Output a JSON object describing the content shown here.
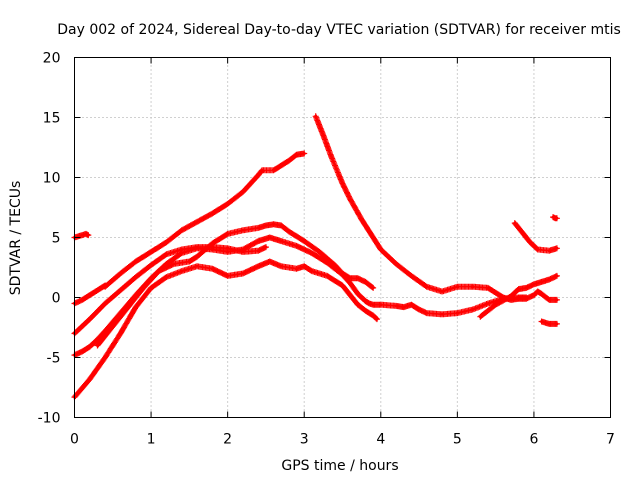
{
  "chart_data": {
    "type": "scatter",
    "title": "Day 002 of 2024, Sidereal Day-to-day VTEC variation (SDTVAR) for receiver mtis",
    "xlabel": "GPS time / hours",
    "ylabel": "SDTVAR / TECUs",
    "xlim": [
      0,
      7
    ],
    "ylim": [
      -10,
      20
    ],
    "xticks": [
      0,
      1,
      2,
      3,
      4,
      5,
      6,
      7
    ],
    "yticks": [
      -10,
      -5,
      0,
      5,
      10,
      15,
      20
    ],
    "xtick_labels": [
      "0",
      "1",
      "2",
      "3",
      "4",
      "5",
      "6",
      "7"
    ],
    "ytick_labels": [
      "-10",
      "-5",
      "0",
      "5",
      "10",
      "15",
      "20"
    ],
    "grid": true,
    "marker": "+",
    "color": "#ff0000",
    "series": [
      {
        "name": "s1",
        "points": [
          [
            0.0,
            5.0
          ],
          [
            0.05,
            5.1
          ],
          [
            0.1,
            5.2
          ],
          [
            0.15,
            5.3
          ],
          [
            0.18,
            5.2
          ]
        ]
      },
      {
        "name": "s2",
        "points": [
          [
            0.0,
            -0.5
          ],
          [
            0.1,
            -0.2
          ],
          [
            0.2,
            0.2
          ],
          [
            0.3,
            0.6
          ],
          [
            0.4,
            1.0
          ]
        ]
      },
      {
        "name": "s3",
        "points": [
          [
            0.0,
            -3.0
          ],
          [
            0.2,
            -1.8
          ],
          [
            0.4,
            -0.5
          ],
          [
            0.6,
            0.6
          ],
          [
            0.8,
            1.7
          ],
          [
            1.0,
            2.7
          ],
          [
            1.2,
            3.6
          ],
          [
            1.4,
            4.0
          ],
          [
            1.6,
            4.2
          ],
          [
            1.8,
            4.2
          ],
          [
            2.0,
            4.1
          ],
          [
            2.2,
            3.8
          ],
          [
            2.4,
            3.9
          ],
          [
            2.5,
            4.2
          ]
        ]
      },
      {
        "name": "s4",
        "points": [
          [
            0.0,
            -4.8
          ],
          [
            0.1,
            -4.5
          ],
          [
            0.2,
            -4.1
          ],
          [
            0.3,
            -3.5
          ],
          [
            0.4,
            -2.8
          ],
          [
            0.6,
            -1.3
          ],
          [
            0.8,
            0.2
          ],
          [
            1.0,
            1.6
          ],
          [
            1.2,
            2.8
          ],
          [
            1.4,
            3.7
          ],
          [
            1.6,
            4.1
          ],
          [
            1.8,
            4.0
          ],
          [
            2.0,
            3.8
          ],
          [
            2.2,
            4.0
          ],
          [
            2.4,
            4.7
          ],
          [
            2.55,
            5.0
          ],
          [
            2.7,
            4.7
          ],
          [
            2.9,
            4.3
          ],
          [
            3.1,
            3.7
          ],
          [
            3.3,
            2.9
          ],
          [
            3.5,
            1.9
          ],
          [
            3.6,
            1.2
          ],
          [
            3.7,
            0.3
          ],
          [
            3.8,
            -0.3
          ],
          [
            3.85,
            -0.5
          ],
          [
            3.9,
            -0.6
          ],
          [
            4.0,
            -0.6
          ],
          [
            4.2,
            -0.7
          ],
          [
            4.3,
            -0.8
          ],
          [
            4.4,
            -0.6
          ],
          [
            4.5,
            -1.0
          ],
          [
            4.6,
            -1.3
          ],
          [
            4.8,
            -1.4
          ],
          [
            5.0,
            -1.3
          ],
          [
            5.2,
            -1.0
          ],
          [
            5.4,
            -0.5
          ],
          [
            5.6,
            -0.1
          ],
          [
            5.8,
            0.0
          ],
          [
            5.9,
            0.0
          ]
        ]
      },
      {
        "name": "s5",
        "points": [
          [
            0.0,
            -8.3
          ],
          [
            0.2,
            -6.8
          ],
          [
            0.4,
            -5.0
          ],
          [
            0.6,
            -3.0
          ],
          [
            0.8,
            -0.8
          ],
          [
            1.0,
            0.8
          ],
          [
            1.2,
            1.7
          ],
          [
            1.4,
            2.2
          ],
          [
            1.6,
            2.6
          ],
          [
            1.8,
            2.4
          ],
          [
            2.0,
            1.8
          ],
          [
            2.2,
            2.0
          ],
          [
            2.4,
            2.6
          ],
          [
            2.55,
            3.0
          ],
          [
            2.7,
            2.6
          ],
          [
            2.9,
            2.4
          ],
          [
            3.0,
            2.6
          ],
          [
            3.1,
            2.2
          ],
          [
            3.3,
            1.8
          ],
          [
            3.5,
            1.0
          ],
          [
            3.6,
            0.2
          ],
          [
            3.7,
            -0.6
          ],
          [
            3.8,
            -1.1
          ],
          [
            3.9,
            -1.5
          ],
          [
            3.95,
            -1.8
          ]
        ]
      },
      {
        "name": "s6",
        "points": [
          [
            0.3,
            -4.0
          ],
          [
            0.5,
            -2.4
          ],
          [
            0.7,
            -0.8
          ],
          [
            0.9,
            0.8
          ],
          [
            1.1,
            2.2
          ],
          [
            1.3,
            2.8
          ],
          [
            1.5,
            3.0
          ],
          [
            1.6,
            3.4
          ],
          [
            1.8,
            4.5
          ],
          [
            2.0,
            5.3
          ],
          [
            2.2,
            5.6
          ],
          [
            2.4,
            5.8
          ],
          [
            2.5,
            6.0
          ],
          [
            2.6,
            6.1
          ],
          [
            2.7,
            6.0
          ],
          [
            2.8,
            5.5
          ],
          [
            3.0,
            4.7
          ],
          [
            3.2,
            3.8
          ],
          [
            3.4,
            2.7
          ],
          [
            3.5,
            2.0
          ],
          [
            3.6,
            1.6
          ],
          [
            3.7,
            1.6
          ],
          [
            3.8,
            1.3
          ],
          [
            3.9,
            0.8
          ]
        ]
      },
      {
        "name": "s7",
        "points": [
          [
            0.4,
            0.9
          ],
          [
            0.6,
            2.0
          ],
          [
            0.8,
            3.0
          ],
          [
            1.0,
            3.8
          ],
          [
            1.2,
            4.6
          ],
          [
            1.4,
            5.6
          ],
          [
            1.6,
            6.3
          ],
          [
            1.8,
            7.0
          ],
          [
            2.0,
            7.8
          ],
          [
            2.2,
            8.8
          ],
          [
            2.4,
            10.2
          ],
          [
            2.45,
            10.6
          ],
          [
            2.6,
            10.6
          ],
          [
            2.8,
            11.4
          ],
          [
            2.9,
            11.9
          ],
          [
            3.0,
            12.0
          ]
        ]
      },
      {
        "name": "s8",
        "points": [
          [
            3.15,
            15.1
          ],
          [
            3.25,
            13.5
          ],
          [
            3.35,
            11.8
          ],
          [
            3.5,
            9.5
          ],
          [
            3.6,
            8.2
          ],
          [
            3.75,
            6.5
          ],
          [
            3.9,
            5.0
          ],
          [
            4.0,
            4.0
          ],
          [
            4.2,
            2.8
          ],
          [
            4.4,
            1.8
          ],
          [
            4.6,
            0.9
          ],
          [
            4.8,
            0.5
          ],
          [
            5.0,
            0.9
          ],
          [
            5.2,
            0.9
          ],
          [
            5.4,
            0.8
          ],
          [
            5.5,
            0.4
          ],
          [
            5.6,
            0.0
          ],
          [
            5.7,
            -0.2
          ],
          [
            5.8,
            -0.1
          ],
          [
            5.9,
            -0.1
          ],
          [
            6.0,
            0.2
          ],
          [
            6.05,
            0.5
          ],
          [
            6.1,
            0.3
          ],
          [
            6.2,
            -0.2
          ],
          [
            6.3,
            -0.2
          ]
        ]
      },
      {
        "name": "s9",
        "points": [
          [
            5.3,
            -1.6
          ],
          [
            5.5,
            -0.6
          ],
          [
            5.7,
            0.1
          ],
          [
            5.8,
            0.7
          ],
          [
            5.9,
            0.8
          ],
          [
            6.0,
            1.1
          ],
          [
            6.1,
            1.3
          ],
          [
            6.2,
            1.5
          ],
          [
            6.3,
            1.8
          ]
        ]
      },
      {
        "name": "s10",
        "points": [
          [
            5.75,
            6.2
          ],
          [
            5.85,
            5.4
          ],
          [
            5.95,
            4.6
          ],
          [
            6.05,
            4.0
          ],
          [
            6.2,
            3.9
          ],
          [
            6.3,
            4.1
          ]
        ]
      },
      {
        "name": "s11",
        "points": [
          [
            6.1,
            -2.0
          ],
          [
            6.2,
            -2.2
          ],
          [
            6.3,
            -2.2
          ]
        ]
      },
      {
        "name": "s12",
        "points": [
          [
            6.25,
            6.7
          ],
          [
            6.28,
            6.6
          ],
          [
            6.3,
            6.6
          ]
        ]
      }
    ]
  }
}
